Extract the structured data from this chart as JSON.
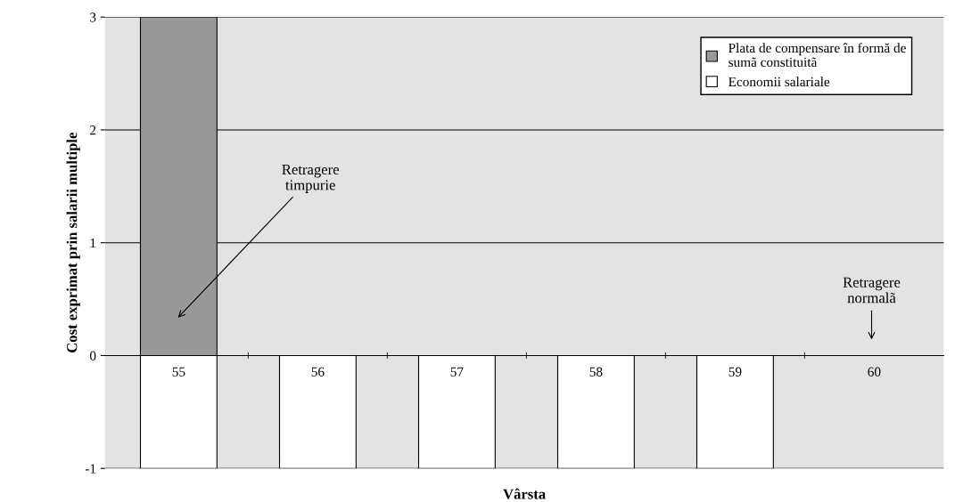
{
  "chart_data": {
    "type": "bar",
    "xlabel": "Vârsta",
    "ylabel": "Cost exprimat prin salarii multiple",
    "categories": [
      "55",
      "56",
      "57",
      "58",
      "59",
      "60"
    ],
    "series": [
      {
        "name": "Plata de compensare în formă de\nsumã constituitã",
        "color": "#999999",
        "values": [
          3,
          null,
          null,
          null,
          null,
          null
        ]
      },
      {
        "name": "Economii salariale",
        "color": "#ffffff",
        "values": [
          -1,
          -1,
          -1,
          -1,
          -1,
          null
        ]
      }
    ],
    "ylim": [
      -1,
      3
    ],
    "yticks": [
      -1,
      0,
      1,
      2,
      3
    ],
    "grid": "y",
    "legend": "top right",
    "annotations": [
      "Retragere\ntimpurie",
      "Retragere\nnormalã"
    ]
  }
}
